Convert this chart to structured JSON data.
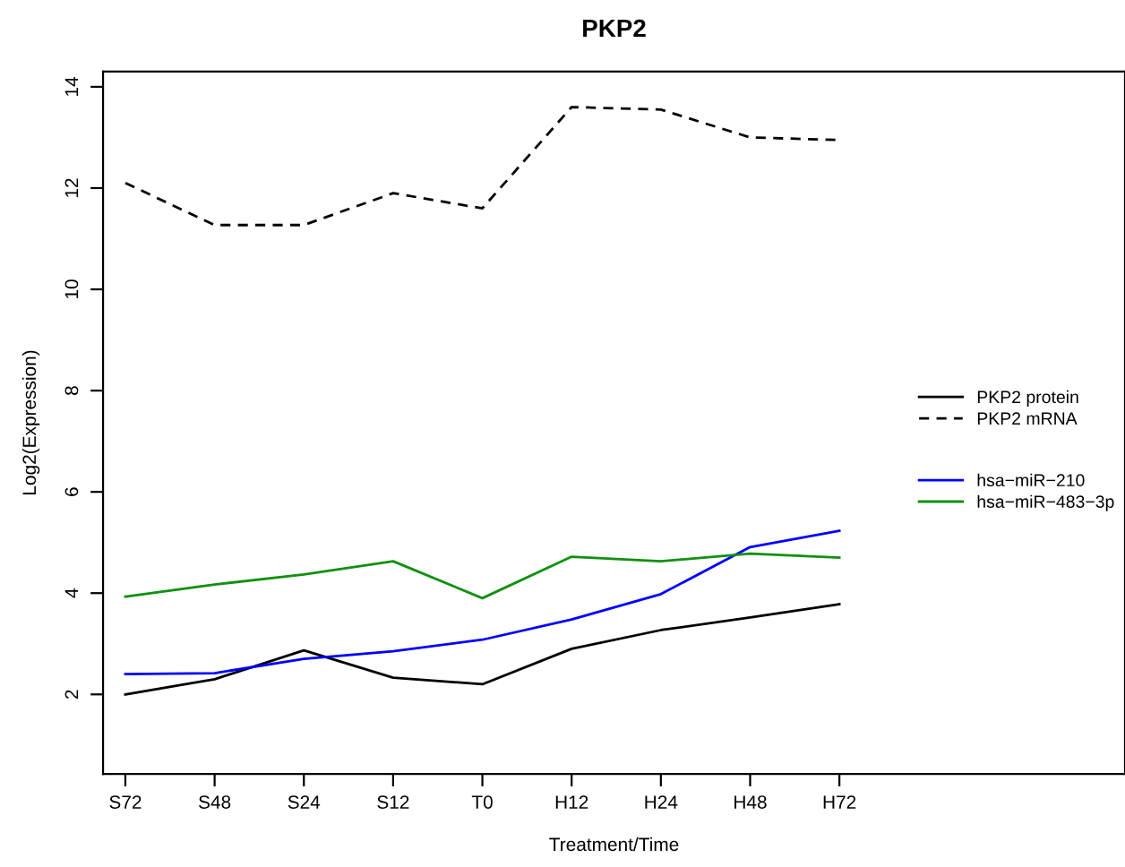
{
  "chart_data": {
    "type": "line",
    "title": "PKP2",
    "xlabel": "Treatment/Time",
    "ylabel": "Log2(Expression)",
    "categories": [
      "S72",
      "S48",
      "S24",
      "S12",
      "T0",
      "H12",
      "H24",
      "H48",
      "H72"
    ],
    "ylim": [
      0.43,
      14.3
    ],
    "yticks": [
      2,
      4,
      6,
      8,
      10,
      12,
      14
    ],
    "legend": "right",
    "grid": false,
    "marker": "none",
    "series": [
      {
        "name": "PKP2 protein",
        "color": "#000000",
        "line_style": "solid",
        "values": [
          2.0,
          2.3,
          2.87,
          2.33,
          2.2,
          2.9,
          3.27,
          3.52,
          3.78
        ]
      },
      {
        "name": "PKP2 mRNA",
        "color": "#000000",
        "line_style": "dashed",
        "values": [
          12.1,
          11.27,
          11.27,
          11.9,
          11.6,
          13.6,
          13.55,
          13.0,
          12.95
        ]
      },
      {
        "name": "hsa−miR−210",
        "color": "#0000ff",
        "line_style": "solid",
        "values": [
          2.4,
          2.42,
          2.7,
          2.85,
          3.08,
          3.48,
          3.98,
          4.91,
          5.23
        ]
      },
      {
        "name": "hsa−miR−483−3p",
        "color": "#109010",
        "line_style": "solid",
        "values": [
          3.93,
          4.17,
          4.37,
          4.63,
          3.9,
          4.72,
          4.63,
          4.78,
          4.7
        ]
      }
    ]
  }
}
